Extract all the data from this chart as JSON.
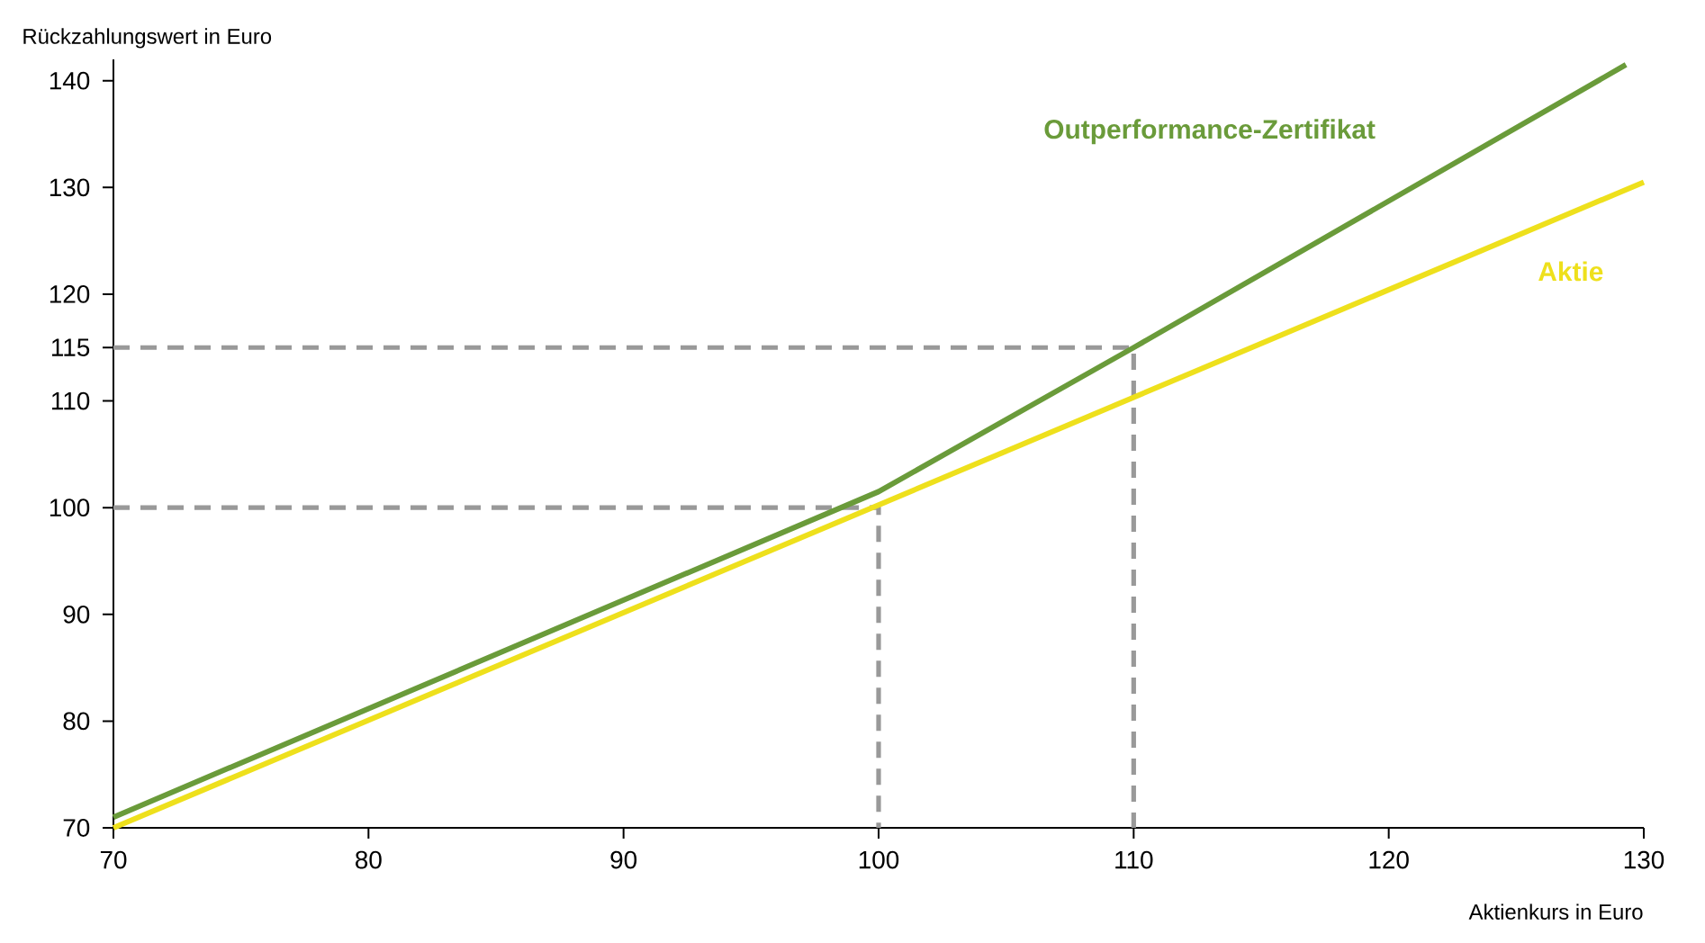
{
  "chart_data": {
    "type": "line",
    "xlabel": "Aktienkurs in Euro",
    "ylabel": "Rückzahlungswert in Euro",
    "xlim": [
      70,
      130
    ],
    "ylim": [
      70,
      142
    ],
    "xticks": [
      70,
      80,
      90,
      100,
      110,
      120,
      130
    ],
    "yticks": [
      70,
      80,
      90,
      100,
      110,
      115,
      120,
      130,
      140
    ],
    "grid": false,
    "marker": "none",
    "series": [
      {
        "name": "Outperformance-Zertifikat",
        "color": "#6a9b3a",
        "x": [
          70,
          100,
          110,
          129.3
        ],
        "values": [
          71,
          101.5,
          115,
          141.5
        ]
      },
      {
        "name": "Aktie",
        "color": "#eee01c",
        "x": [
          70,
          130
        ],
        "values": [
          70,
          130.5
        ]
      },
      {
        "color": "#999999",
        "line_style": "dashed",
        "x": [
          70,
          100,
          100
        ],
        "values": [
          100,
          100,
          70
        ]
      },
      {
        "color": "#999999",
        "line_style": "dashed",
        "x": [
          70,
          110,
          110
        ],
        "values": [
          115,
          115,
          70
        ]
      }
    ]
  }
}
